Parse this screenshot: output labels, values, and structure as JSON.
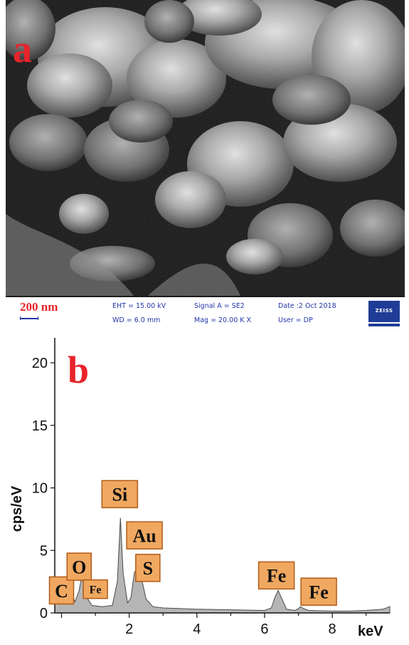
{
  "panel_a": {
    "letter": "a",
    "info_bar": {
      "scale_label": "200 nm",
      "eht": "EHT = 15.00 kV",
      "wd": "WD = 6.0 mm",
      "signal": "Signal A = SE2",
      "mag": "Mag = 20.00 K X",
      "date": "Date :2 Oct 2018",
      "user": "User = DP",
      "logo": "ZEISS"
    },
    "colors": {
      "letter": "#e8242a",
      "info_text": "#2236a8",
      "logo_bg": "#1f3c96"
    }
  },
  "panel_b": {
    "letter": "b",
    "colors": {
      "fill": "#b5b5b5",
      "label_box": "#f0a860",
      "letter": "#e8242a"
    }
  },
  "chart_data": {
    "type": "area",
    "title": "",
    "xlabel": "keV",
    "ylabel": "cps/eV",
    "xlim": [
      -0.2,
      9.7
    ],
    "ylim": [
      0,
      22
    ],
    "x_ticks": [
      "2",
      "4",
      "6",
      "8"
    ],
    "y_ticks": [
      "0",
      "5",
      "10",
      "15",
      "20"
    ],
    "series": [
      {
        "x": [
          -0.2,
          0.1,
          0.2,
          0.28,
          0.4,
          0.52,
          0.6,
          0.7,
          0.78,
          0.9,
          1.2,
          1.5,
          1.65,
          1.74,
          1.82,
          1.95,
          2.05,
          2.15,
          2.25,
          2.35,
          2.5,
          2.7,
          3.0,
          4.0,
          5.0,
          6.0,
          6.2,
          6.3,
          6.4,
          6.5,
          6.65,
          6.9,
          7.0,
          7.06,
          7.15,
          7.3,
          8.0,
          8.5,
          9.0,
          9.5,
          9.7
        ],
        "y": [
          1.3,
          1.2,
          1.4,
          1.6,
          0.9,
          1.8,
          3.0,
          1.6,
          1.1,
          0.6,
          0.5,
          0.6,
          2.5,
          7.6,
          3.2,
          0.8,
          1.2,
          3.2,
          3.7,
          2.9,
          1.1,
          0.5,
          0.4,
          0.3,
          0.25,
          0.2,
          0.4,
          1.2,
          1.8,
          1.2,
          0.3,
          0.2,
          0.35,
          0.5,
          0.35,
          0.2,
          0.15,
          0.15,
          0.2,
          0.3,
          0.5
        ]
      }
    ],
    "annotations": [
      {
        "text": "C",
        "x": 0.0,
        "y": 1.8
      },
      {
        "text": "O",
        "x": 0.52,
        "y": 3.7
      },
      {
        "text": "Fe",
        "x": 1.0,
        "y": 1.9
      },
      {
        "text": "Si",
        "x": 1.72,
        "y": 9.5
      },
      {
        "text": "Au",
        "x": 2.45,
        "y": 6.2
      },
      {
        "text": "S",
        "x": 2.55,
        "y": 3.6
      },
      {
        "text": "Fe",
        "x": 6.35,
        "y": 3.0
      },
      {
        "text": "Fe",
        "x": 7.6,
        "y": 1.7
      }
    ]
  }
}
